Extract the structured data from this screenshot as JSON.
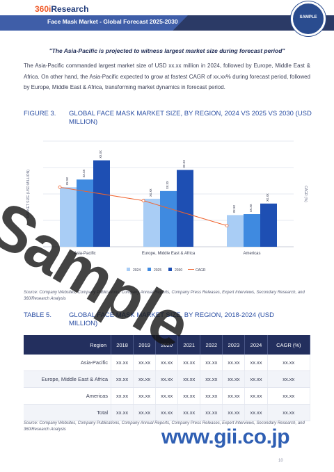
{
  "header": {
    "logo_prefix": "360i",
    "logo_suffix": "Research",
    "report_title": "Face Mask Market - Global Forecast 2025-2030",
    "seal_text": "SAMPLE",
    "brand_color": "#2b3a66"
  },
  "quote": "\"The Asia-Pacific is projected to witness largest market size during forecast period\"",
  "paragraph": "The Asia-Pacific commanded largest market size of USD xx.xx million in 2024, followed by Europe, Middle East & Africa. On other hand, the Asia-Pacific expected to grow at fastest CAGR of xx.xx% during forecast period, followed by Europe, Middle East & Africa, transforming market dynamics in forecast period.",
  "figure": {
    "number": "FIGURE 3.",
    "title": "GLOBAL FACE MASK MARKET SIZE, BY REGION, 2024 VS 2025 VS 2030 (USD MILLION)"
  },
  "chart_data": {
    "type": "bar",
    "categories": [
      "Asia-Pacific",
      "Europe, Middle East & Africa",
      "Americas"
    ],
    "series": [
      {
        "name": "2024",
        "values": [
          62,
          50,
          33
        ],
        "labels": [
          "xx.xx",
          "xx.xx",
          "xx.xx"
        ],
        "color": "#a9cdf5"
      },
      {
        "name": "2025",
        "values": [
          70,
          58,
          34
        ],
        "labels": [
          "xx.xx",
          "xx.xx",
          "xx.xx"
        ],
        "color": "#3f8ae0"
      },
      {
        "name": "2030",
        "values": [
          90,
          80,
          45
        ],
        "labels": [
          "xx.xx",
          "xx.xx",
          "xx.xx"
        ],
        "color": "#1e4fb3"
      }
    ],
    "cagr": {
      "name": "CAGR",
      "values": [
        62,
        48,
        22
      ],
      "color": "#f0642f"
    },
    "ylabel": "MARKET SIZE (USD MILLION)",
    "y2label": "CAGR (%)",
    "ylim": [
      0,
      110
    ],
    "legend": [
      "2024",
      "2025",
      "2030",
      "CAGR"
    ],
    "legend_position": "bottom",
    "grid": true
  },
  "source1": "Source: Company Websites, Company Publications, Company Annual Reports, Company Press Releases, Expert Interviews, Secondary Research, and 360iResearch Analysis",
  "table": {
    "number": "TABLE 5.",
    "title": "GLOBAL FACE MASK MARKET SIZE, BY REGION, 2018-2024 (USD MILLION)",
    "headers": [
      "Region",
      "2018",
      "2019",
      "2020",
      "2021",
      "2022",
      "2023",
      "2024",
      "CAGR (%)"
    ],
    "rows": [
      [
        "Asia-Pacific",
        "xx.xx",
        "xx.xx",
        "xx.xx",
        "xx.xx",
        "xx.xx",
        "xx.xx",
        "xx.xx",
        "xx.xx"
      ],
      [
        "Europe, Middle East & Africa",
        "xx.xx",
        "xx.xx",
        "xx.xx",
        "xx.xx",
        "xx.xx",
        "xx.xx",
        "xx.xx",
        "xx.xx"
      ],
      [
        "Americas",
        "xx.xx",
        "xx.xx",
        "xx.xx",
        "xx.xx",
        "xx.xx",
        "xx.xx",
        "xx.xx",
        "xx.xx"
      ],
      [
        "Total",
        "xx.xx",
        "xx.xx",
        "xx.xx",
        "xx.xx",
        "xx.xx",
        "xx.xx",
        "xx.xx",
        "xx.xx"
      ]
    ]
  },
  "source2": "Source: Company Websites, Company Publications, Company Annual Reports, Company Press Releases, Expert Interviews, Secondary Research, and 360iResearch Analysis",
  "watermark": "Sample",
  "gii_url": "www.gii.co.jp",
  "page_number": "10"
}
